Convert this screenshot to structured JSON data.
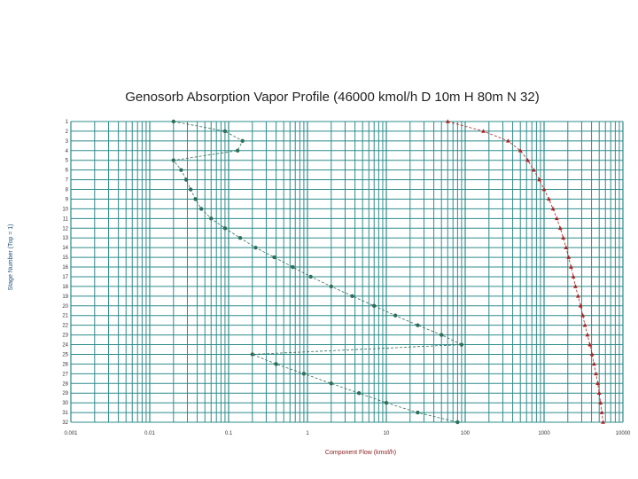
{
  "chart_data": {
    "type": "line",
    "title": "Genosorb Absorption Vapor Profile (46000 kmol/h D 10m H 80m N 32)",
    "xlabel": "Component Flow (kmol/h)",
    "ylabel": "Stage Number (Top = 1)",
    "x_scale": "log",
    "xlim": [
      0.001,
      10000
    ],
    "x_ticks": [
      {
        "value": 0.001,
        "label": "0.001"
      },
      {
        "value": 0.01,
        "label": "0.01"
      },
      {
        "value": 0.1,
        "label": "0.1"
      },
      {
        "value": 1,
        "label": "1"
      },
      {
        "value": 10,
        "label": "10"
      },
      {
        "value": 100,
        "label": "100"
      },
      {
        "value": 1000,
        "label": "1000"
      },
      {
        "value": 10000,
        "label": "10000"
      }
    ],
    "ylim": [
      1,
      32
    ],
    "y_reversed": true,
    "y_ticks": [
      1,
      2,
      3,
      4,
      5,
      6,
      7,
      8,
      9,
      10,
      11,
      12,
      13,
      14,
      15,
      16,
      17,
      18,
      19,
      20,
      21,
      22,
      23,
      24,
      25,
      26,
      27,
      28,
      29,
      30,
      31,
      32
    ],
    "grid": true,
    "colors": {
      "grid": "#2e8b8b",
      "series_green": "#2f6f5a",
      "series_red": "#b22222",
      "xlabel": "#8b1a1a",
      "ylabel": "#1f4e79"
    },
    "series": [
      {
        "color": "#2f6f5a",
        "marker": "circle",
        "points": [
          {
            "x": 0.02,
            "y": 1
          },
          {
            "x": 0.09,
            "y": 2
          },
          {
            "x": 0.15,
            "y": 3
          },
          {
            "x": 0.13,
            "y": 4
          },
          {
            "x": 0.02,
            "y": 5
          },
          {
            "x": 0.025,
            "y": 6
          },
          {
            "x": 0.029,
            "y": 7
          },
          {
            "x": 0.033,
            "y": 8
          },
          {
            "x": 0.038,
            "y": 9
          },
          {
            "x": 0.045,
            "y": 10
          },
          {
            "x": 0.06,
            "y": 11
          },
          {
            "x": 0.09,
            "y": 12
          },
          {
            "x": 0.14,
            "y": 13
          },
          {
            "x": 0.22,
            "y": 14
          },
          {
            "x": 0.38,
            "y": 15
          },
          {
            "x": 0.65,
            "y": 16
          },
          {
            "x": 1.1,
            "y": 17
          },
          {
            "x": 2.0,
            "y": 18
          },
          {
            "x": 3.7,
            "y": 19
          },
          {
            "x": 7.0,
            "y": 20
          },
          {
            "x": 13,
            "y": 21
          },
          {
            "x": 25,
            "y": 22
          },
          {
            "x": 50,
            "y": 23
          },
          {
            "x": 90,
            "y": 24
          },
          {
            "x": 0.2,
            "y": 25
          },
          {
            "x": 0.4,
            "y": 26
          },
          {
            "x": 0.9,
            "y": 27
          },
          {
            "x": 2.0,
            "y": 28
          },
          {
            "x": 4.5,
            "y": 29
          },
          {
            "x": 10,
            "y": 30
          },
          {
            "x": 25,
            "y": 31
          },
          {
            "x": 80,
            "y": 32
          }
        ]
      },
      {
        "color": "#b22222",
        "marker": "triangle",
        "points": [
          {
            "x": 60,
            "y": 1
          },
          {
            "x": 170,
            "y": 2
          },
          {
            "x": 350,
            "y": 3
          },
          {
            "x": 500,
            "y": 4
          },
          {
            "x": 620,
            "y": 5
          },
          {
            "x": 740,
            "y": 6
          },
          {
            "x": 870,
            "y": 7
          },
          {
            "x": 1000,
            "y": 8
          },
          {
            "x": 1150,
            "y": 9
          },
          {
            "x": 1300,
            "y": 10
          },
          {
            "x": 1450,
            "y": 11
          },
          {
            "x": 1600,
            "y": 12
          },
          {
            "x": 1750,
            "y": 13
          },
          {
            "x": 1900,
            "y": 14
          },
          {
            "x": 2050,
            "y": 15
          },
          {
            "x": 2200,
            "y": 16
          },
          {
            "x": 2350,
            "y": 17
          },
          {
            "x": 2500,
            "y": 18
          },
          {
            "x": 2700,
            "y": 19
          },
          {
            "x": 2900,
            "y": 20
          },
          {
            "x": 3100,
            "y": 21
          },
          {
            "x": 3300,
            "y": 22
          },
          {
            "x": 3550,
            "y": 23
          },
          {
            "x": 3800,
            "y": 24
          },
          {
            "x": 4050,
            "y": 25
          },
          {
            "x": 4300,
            "y": 26
          },
          {
            "x": 4550,
            "y": 27
          },
          {
            "x": 4800,
            "y": 28
          },
          {
            "x": 5000,
            "y": 29
          },
          {
            "x": 5200,
            "y": 30
          },
          {
            "x": 5400,
            "y": 31
          },
          {
            "x": 5600,
            "y": 32
          }
        ]
      }
    ]
  }
}
